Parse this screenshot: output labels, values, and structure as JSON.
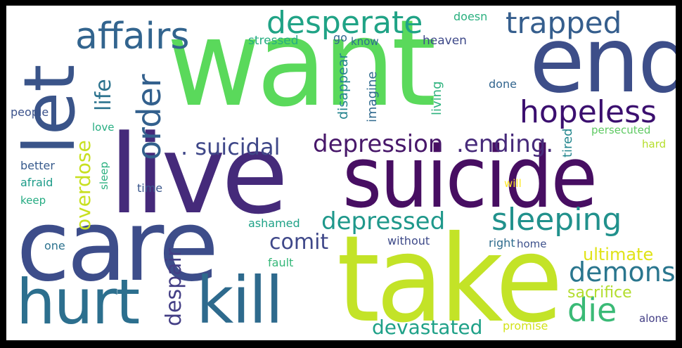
{
  "background_color": "#ffffff",
  "frame_color": "#000000",
  "words": [
    {
      "id": "want",
      "text": "want",
      "color": "#5ad95b",
      "orient": "h"
    },
    {
      "id": "end",
      "text": "end",
      "color": "#3d4e89",
      "orient": "h"
    },
    {
      "id": "let",
      "text": "let",
      "color": "#3a5489",
      "orient": "v"
    },
    {
      "id": "live",
      "text": "live",
      "color": "#452a7a",
      "orient": "h"
    },
    {
      "id": "suicide",
      "text": "suicide",
      "color": "#470e62",
      "orient": "h"
    },
    {
      "id": "care",
      "text": "care",
      "color": "#3d4d8a",
      "orient": "h"
    },
    {
      "id": "take",
      "text": "take",
      "color": "#c3e327",
      "orient": "h"
    },
    {
      "id": "hurt",
      "text": "hurt",
      "color": "#2c6f8e",
      "orient": "h"
    },
    {
      "id": "kill",
      "text": "kill",
      "color": "#2e6a8d",
      "orient": "h"
    },
    {
      "id": "affairs",
      "text": "affairs",
      "color": "#32648e",
      "orient": "h"
    },
    {
      "id": "desperate",
      "text": "desperate",
      "color": "#20a386",
      "orient": "h"
    },
    {
      "id": "trapped",
      "text": "trapped",
      "color": "#355e8d",
      "orient": "h"
    },
    {
      "id": "hopeless",
      "text": "hopeless",
      "color": "#3b0f6f",
      "orient": "h"
    },
    {
      "id": "order",
      "text": "order",
      "color": "#33608d",
      "orient": "v"
    },
    {
      "id": "life",
      "text": "life",
      "color": "#2c738e",
      "orient": "v"
    },
    {
      "id": "suicidal",
      "text": ". suicidal",
      "color": "#3f4788",
      "orient": "h"
    },
    {
      "id": "depression",
      "text": "depression",
      "color": "#48186a",
      "orient": "h"
    },
    {
      "id": "ending",
      "text": ".ending.",
      "color": "#472a7a",
      "orient": "h"
    },
    {
      "id": "sleeping",
      "text": "sleeping",
      "color": "#21918c",
      "orient": "h"
    },
    {
      "id": "depressed",
      "text": "depressed",
      "color": "#1f988b",
      "orient": "h"
    },
    {
      "id": "overdose",
      "text": "overdose",
      "color": "#c8e020",
      "orient": "v"
    },
    {
      "id": "comit",
      "text": "comit",
      "color": "#3f4889",
      "orient": "h"
    },
    {
      "id": "demons",
      "text": "demons",
      "color": "#2a768e",
      "orient": "h"
    },
    {
      "id": "despair",
      "text": "despair",
      "color": "#433e85",
      "orient": "v"
    },
    {
      "id": "die",
      "text": "die",
      "color": "#3aba76",
      "orient": "h"
    },
    {
      "id": "devastated",
      "text": "devastated",
      "color": "#1fa188",
      "orient": "h"
    },
    {
      "id": "ultimate",
      "text": "ultimate",
      "color": "#e0e318",
      "orient": "h"
    },
    {
      "id": "sacrifice",
      "text": "sacrifice",
      "color": "#b2dd2d",
      "orient": "h"
    },
    {
      "id": "stressed",
      "text": "stressed",
      "color": "#27ad81",
      "orient": "h"
    },
    {
      "id": "go",
      "text": "go",
      "color": "#31688e",
      "orient": "h"
    },
    {
      "id": "know",
      "text": "know",
      "color": "#2d708e",
      "orient": "h"
    },
    {
      "id": "heaven",
      "text": "heaven",
      "color": "#3e4989",
      "orient": "h"
    },
    {
      "id": "doesn",
      "text": "doesn",
      "color": "#2ab07f",
      "orient": "h"
    },
    {
      "id": "disappear",
      "text": "disappear",
      "color": "#25848e",
      "orient": "v"
    },
    {
      "id": "imagine",
      "text": "imagine",
      "color": "#306a8e",
      "orient": "v"
    },
    {
      "id": "living",
      "text": "living",
      "color": "#2db27d",
      "orient": "v"
    },
    {
      "id": "done",
      "text": "done",
      "color": "#32658e",
      "orient": "h"
    },
    {
      "id": "tired",
      "text": "tired",
      "color": "#24878e",
      "orient": "v"
    },
    {
      "id": "persecuted",
      "text": "persecuted",
      "color": "#5ec962",
      "orient": "h"
    },
    {
      "id": "hard",
      "text": "hard",
      "color": "#b5de2b",
      "orient": "h"
    },
    {
      "id": "people",
      "text": "people",
      "color": "#3b528b",
      "orient": "h"
    },
    {
      "id": "love",
      "text": "love",
      "color": "#26ad81",
      "orient": "h"
    },
    {
      "id": "better",
      "text": "better",
      "color": "#375a8c",
      "orient": "h"
    },
    {
      "id": "afraid",
      "text": "afraid",
      "color": "#1e9c89",
      "orient": "h"
    },
    {
      "id": "keep",
      "text": "keep",
      "color": "#25ab82",
      "orient": "h"
    },
    {
      "id": "sleep",
      "text": "sleep",
      "color": "#2ab07f",
      "orient": "v"
    },
    {
      "id": "time",
      "text": "time",
      "color": "#39568c",
      "orient": "h"
    },
    {
      "id": "will",
      "text": "will",
      "color": "#fde725",
      "orient": "h"
    },
    {
      "id": "ashamed",
      "text": "ashamed",
      "color": "#1fa287",
      "orient": "h"
    },
    {
      "id": "one",
      "text": "one",
      "color": "#2c728e",
      "orient": "h"
    },
    {
      "id": "without",
      "text": "without",
      "color": "#3e4a89",
      "orient": "h"
    },
    {
      "id": "right",
      "text": "right",
      "color": "#2f6c8e",
      "orient": "h"
    },
    {
      "id": "home",
      "text": "home",
      "color": "#3c508b",
      "orient": "h"
    },
    {
      "id": "fault",
      "text": "fault",
      "color": "#35b779",
      "orient": "h"
    },
    {
      "id": "promise",
      "text": "promise",
      "color": "#d2e21b",
      "orient": "h"
    },
    {
      "id": "alone",
      "text": "alone",
      "color": "#433e85",
      "orient": "h"
    }
  ]
}
